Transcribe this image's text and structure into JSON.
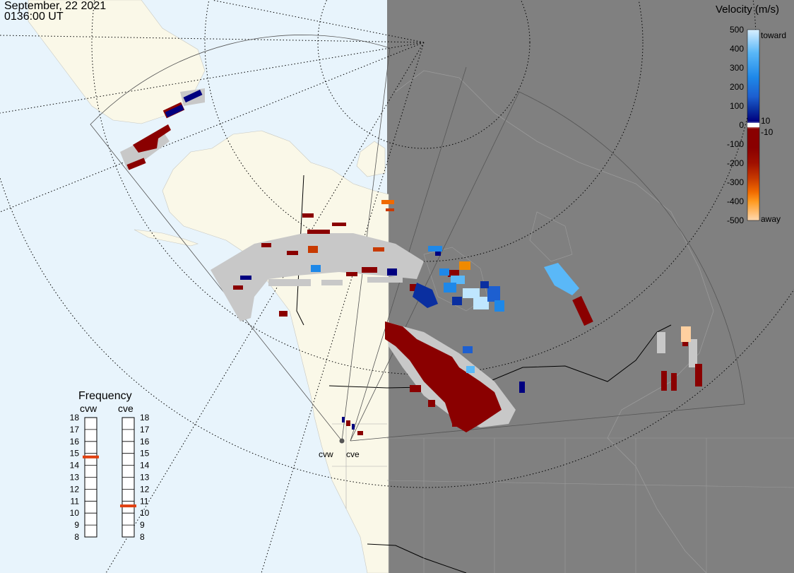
{
  "header": {
    "date": "September, 22 2021",
    "time": "0136:00 UT"
  },
  "velocity_scale": {
    "title": "Velocity (m/s)",
    "ticks": [
      "500",
      "400",
      "300",
      "200",
      "100",
      "0",
      "-100",
      "-200",
      "-300",
      "-400",
      "-500"
    ],
    "side_labels": {
      "toward": "toward",
      "positive_threshold": "10",
      "negative_threshold": "-10",
      "away": "away"
    },
    "colors": [
      "#ffd9b0",
      "#ff9a1f",
      "#f06a00",
      "#c83a00",
      "#a01000",
      "#8a0000",
      "#ffffff",
      "#000080",
      "#0a2fa0",
      "#1d5fd0",
      "#1e88e8",
      "#5ab8f8",
      "#bfe6ff"
    ]
  },
  "frequency_panel": {
    "title": "Frequency",
    "radars": [
      {
        "name": "cvw",
        "value": 14.7
      },
      {
        "name": "cve",
        "value": 10.6
      }
    ],
    "scale": [
      "18",
      "17",
      "16",
      "15",
      "14",
      "13",
      "12",
      "11",
      "10",
      "9",
      "8"
    ]
  },
  "radar_sites": [
    {
      "label": "cvw"
    },
    {
      "label": "cve"
    }
  ],
  "colors": {
    "ocean": "#e8f4fc",
    "land": "#faf8e8",
    "night": "#808080",
    "ground_scatter": "#c8c8c8"
  }
}
